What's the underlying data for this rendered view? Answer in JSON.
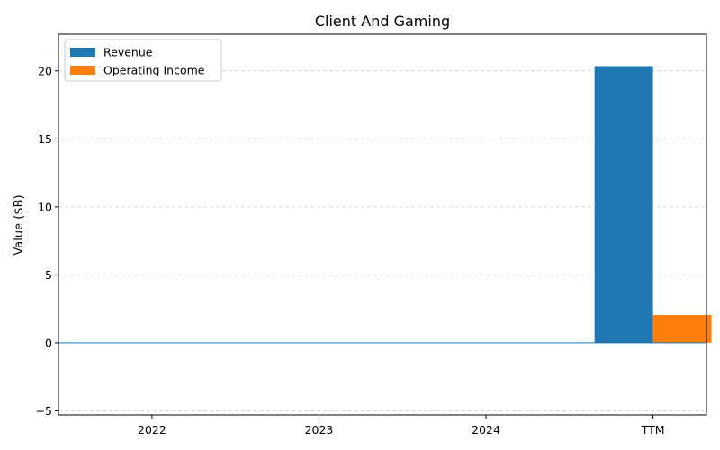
{
  "chart_data": {
    "type": "bar",
    "title": "Client And Gaming",
    "xlabel": "",
    "ylabel": "Value ($B)",
    "categories": [
      "2022",
      "2023",
      "2024",
      "TTM"
    ],
    "series": [
      {
        "name": "Revenue",
        "color": "#1f77b4",
        "values": [
          0,
          0,
          0,
          20.35
        ]
      },
      {
        "name": "Operating Income",
        "color": "#ff7f0e",
        "values": [
          0,
          0,
          0,
          2.05
        ]
      }
    ],
    "ylim": [
      -5.3,
      22.7
    ],
    "yticks": [
      -5,
      0,
      5,
      10,
      15,
      20
    ],
    "grid": true,
    "zero_line_color": "#1f77b4",
    "legend": "top-left"
  }
}
